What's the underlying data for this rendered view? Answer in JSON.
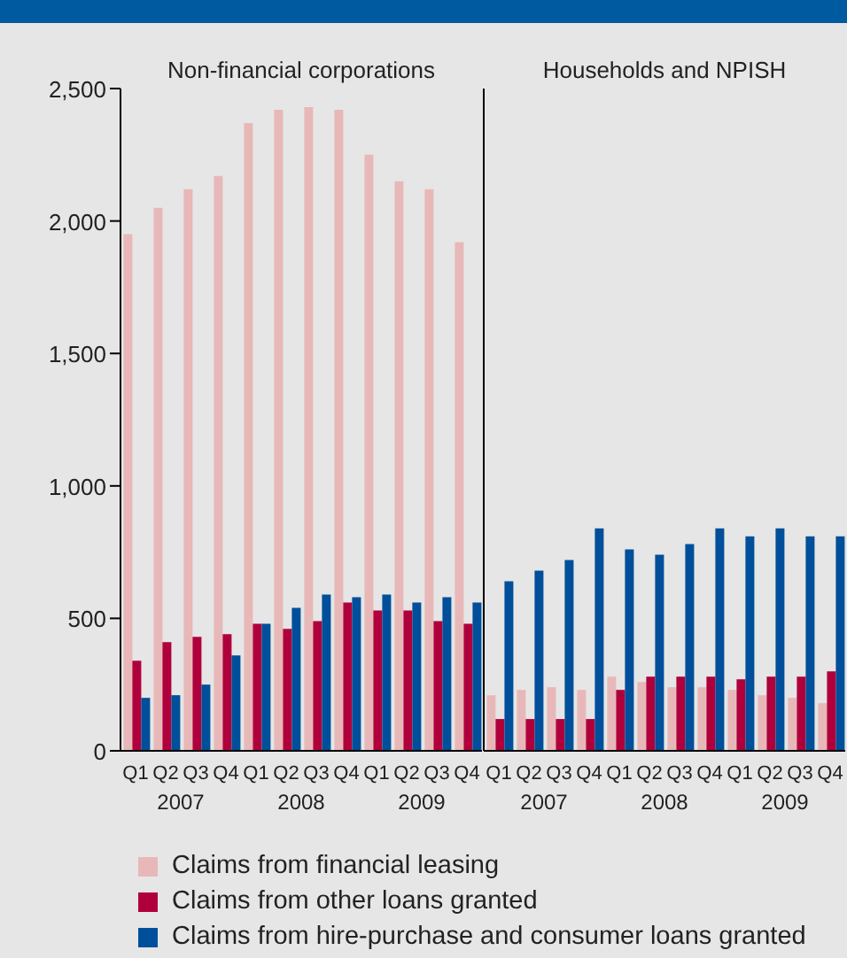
{
  "chart_data": [
    {
      "type": "bar",
      "title": "Non-financial corporations",
      "categories": [
        "Q1",
        "Q2",
        "Q3",
        "Q4",
        "Q1",
        "Q2",
        "Q3",
        "Q4",
        "Q1",
        "Q2",
        "Q3",
        "Q4"
      ],
      "series": [
        {
          "name": "Claims from financial leasing",
          "color": "#e8b8b8",
          "values": [
            1950,
            2050,
            2120,
            2170,
            2370,
            2420,
            2430,
            2420,
            2250,
            2150,
            2120,
            1920
          ]
        },
        {
          "name": "Claims from other loans granted",
          "color": "#b0003c",
          "values": [
            340,
            410,
            430,
            440,
            480,
            460,
            490,
            560,
            530,
            530,
            490,
            480
          ]
        },
        {
          "name": "Claims from hire-purchase and consumer loans granted",
          "color": "#004f9a",
          "values": [
            200,
            210,
            250,
            360,
            480,
            540,
            590,
            580,
            590,
            560,
            580,
            560
          ]
        }
      ],
      "ylim": [
        0,
        2500
      ],
      "yticks": [
        0,
        500,
        {
          "value": 1000,
          "label": "1,000"
        },
        {
          "value": 1500,
          "label": "1,500"
        },
        {
          "value": 2000,
          "label": "2,000"
        },
        {
          "value": 2500,
          "label": "2,500"
        }
      ],
      "annotations": [
        "2007",
        "2008",
        "2009"
      ],
      "legend": "bottom"
    },
    {
      "type": "bar",
      "title": "Households and NPISH",
      "categories": [
        "Q1",
        "Q2",
        "Q3",
        "Q4",
        "Q1",
        "Q2",
        "Q3",
        "Q4",
        "Q1",
        "Q2",
        "Q3",
        "Q4"
      ],
      "series": [
        {
          "color": "#e8b8b8",
          "values": [
            210,
            230,
            240,
            230,
            280,
            260,
            240,
            240,
            230,
            210,
            200,
            180
          ]
        },
        {
          "color": "#b0003c",
          "values": [
            120,
            120,
            120,
            120,
            230,
            280,
            280,
            280,
            270,
            280,
            280,
            300
          ]
        },
        {
          "color": "#004f9a",
          "values": [
            640,
            680,
            720,
            840,
            760,
            740,
            780,
            840,
            810,
            840,
            810,
            810
          ]
        }
      ],
      "ylim": [
        0,
        2500
      ],
      "annotations": [
        "2007",
        "2008",
        "2009"
      ],
      "tick_labels": "x"
    }
  ]
}
